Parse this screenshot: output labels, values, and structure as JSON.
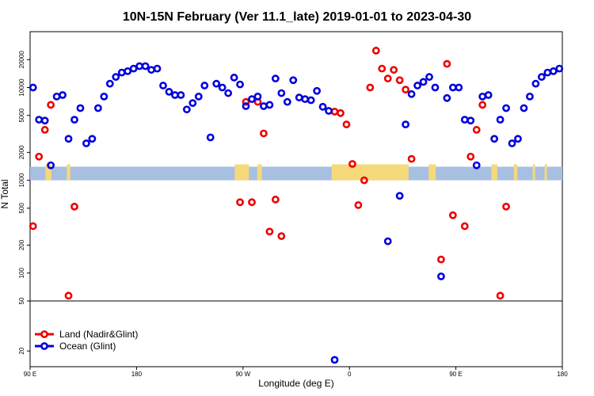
{
  "chart_data": {
    "type": "scatter",
    "title": "10N-15N February (Ver 11.1_late)   2019-01-01 to 2023-04-30",
    "xlabel": "Longitude (deg E)",
    "ylabel": "N Total",
    "x_ticks": [
      {
        "value": 90,
        "label": "90 E"
      },
      {
        "value": 180,
        "label": "180"
      },
      {
        "value": 270,
        "label": "90 W"
      },
      {
        "value": 360,
        "label": "0"
      },
      {
        "value": 450,
        "label": "90 E"
      },
      {
        "value": 540,
        "label": "180"
      }
    ],
    "xlim": [
      90,
      540
    ],
    "y_scale": "log",
    "upper_ticks": [
      {
        "value": 20000,
        "label": "20000"
      },
      {
        "value": 10000,
        "label": "10000"
      },
      {
        "value": 5000,
        "label": "5000"
      },
      {
        "value": 2000,
        "label": "2000"
      },
      {
        "value": 1000,
        "label": "1000"
      },
      {
        "value": 500,
        "label": "500"
      },
      {
        "value": 200,
        "label": "200"
      },
      {
        "value": 100,
        "label": "100"
      },
      {
        "value": 50,
        "label": "50"
      }
    ],
    "upper_ylim": [
      50,
      40000
    ],
    "lower_ticks": [
      {
        "value": 20,
        "label": "20"
      }
    ],
    "lower_ylim": [
      15,
      50
    ],
    "legend": {
      "position": "bottom-left",
      "entries": [
        {
          "label": "Land (Nadir&Glint)",
          "color": "#ee0000"
        },
        {
          "label": "Ocean (Glint)",
          "color": "#0000dd"
        }
      ]
    },
    "land_band": {
      "lower": 1000,
      "upper": 1400,
      "water_color": "#a7bfe0",
      "land_color": "#f5d97a"
    },
    "land_segments": [
      [
        103,
        108
      ],
      [
        121,
        124
      ],
      [
        263,
        275
      ],
      [
        282,
        286
      ],
      [
        345,
        410
      ],
      [
        427,
        433
      ],
      [
        480,
        485
      ],
      [
        499,
        502
      ],
      [
        515,
        517
      ],
      [
        525,
        527
      ]
    ],
    "series": [
      {
        "name": "Land (Nadir&Glint)",
        "color": "#ee0000",
        "points": [
          [
            92.5,
            320
          ],
          [
            97.5,
            1800
          ],
          [
            102.5,
            3500
          ],
          [
            107.5,
            6500
          ],
          [
            122.5,
            57
          ],
          [
            127.5,
            520
          ],
          [
            267.5,
            580
          ],
          [
            272.5,
            7000
          ],
          [
            277.5,
            580
          ],
          [
            282.5,
            7000
          ],
          [
            287.5,
            3200
          ],
          [
            292.5,
            280
          ],
          [
            297.5,
            620
          ],
          [
            302.5,
            250
          ],
          [
            347.5,
            5500
          ],
          [
            352.5,
            5300
          ],
          [
            357.5,
            4000
          ],
          [
            362.5,
            1500
          ],
          [
            367.5,
            540
          ],
          [
            372.5,
            1000
          ],
          [
            377.5,
            10000
          ],
          [
            382.5,
            25000
          ],
          [
            387.5,
            16000
          ],
          [
            392.5,
            12500
          ],
          [
            397.5,
            15500
          ],
          [
            402.5,
            12000
          ],
          [
            407.5,
            9500
          ],
          [
            412.5,
            1700
          ],
          [
            437.5,
            140
          ],
          [
            442.5,
            18000
          ],
          [
            447.5,
            420
          ],
          [
            457.5,
            320
          ],
          [
            462.5,
            1800
          ],
          [
            467.5,
            3500
          ],
          [
            472.5,
            6500
          ],
          [
            487.5,
            57
          ],
          [
            492.5,
            520
          ]
        ]
      },
      {
        "name": "Ocean (Glint)",
        "color": "#0000dd",
        "points": [
          [
            92.5,
            10000
          ],
          [
            97.5,
            4500
          ],
          [
            102.5,
            4400
          ],
          [
            107.5,
            1450
          ],
          [
            112.5,
            8000
          ],
          [
            117.5,
            8300
          ],
          [
            122.5,
            2800
          ],
          [
            127.5,
            4500
          ],
          [
            132.5,
            6000
          ],
          [
            137.5,
            2500
          ],
          [
            142.5,
            2800
          ],
          [
            147.5,
            6000
          ],
          [
            152.5,
            8000
          ],
          [
            157.5,
            11000
          ],
          [
            162.5,
            13000
          ],
          [
            167.5,
            14500
          ],
          [
            172.5,
            15000
          ],
          [
            177.5,
            16000
          ],
          [
            182.5,
            17000
          ],
          [
            187.5,
            17000
          ],
          [
            192.5,
            15500
          ],
          [
            197.5,
            16000
          ],
          [
            202.5,
            10500
          ],
          [
            207.5,
            9000
          ],
          [
            212.5,
            8300
          ],
          [
            217.5,
            8300
          ],
          [
            222.5,
            5800
          ],
          [
            227.5,
            6800
          ],
          [
            232.5,
            8000
          ],
          [
            237.5,
            10500
          ],
          [
            242.5,
            2900
          ],
          [
            247.5,
            11000
          ],
          [
            252.5,
            10000
          ],
          [
            257.5,
            8700
          ],
          [
            262.5,
            12800
          ],
          [
            267.5,
            10800
          ],
          [
            272.5,
            6300
          ],
          [
            277.5,
            7500
          ],
          [
            282.5,
            8000
          ],
          [
            287.5,
            6300
          ],
          [
            292.5,
            6500
          ],
          [
            297.5,
            12500
          ],
          [
            302.5,
            8700
          ],
          [
            307.5,
            7000
          ],
          [
            312.5,
            12000
          ],
          [
            317.5,
            7800
          ],
          [
            322.5,
            7500
          ],
          [
            327.5,
            7300
          ],
          [
            332.5,
            9200
          ],
          [
            337.5,
            6200
          ],
          [
            342.5,
            5600
          ],
          [
            347.5,
            17
          ],
          [
            392.5,
            220
          ],
          [
            402.5,
            680
          ],
          [
            407.5,
            4000
          ],
          [
            412.5,
            8500
          ],
          [
            417.5,
            10500
          ],
          [
            422.5,
            11500
          ],
          [
            427.5,
            13000
          ],
          [
            432.5,
            10000
          ],
          [
            437.5,
            92
          ],
          [
            442.5,
            7700
          ],
          [
            447.5,
            10000
          ],
          [
            452.5,
            10000
          ],
          [
            457.5,
            4500
          ],
          [
            462.5,
            4400
          ],
          [
            467.5,
            1450
          ],
          [
            472.5,
            8000
          ],
          [
            477.5,
            8300
          ],
          [
            482.5,
            2800
          ],
          [
            487.5,
            4500
          ],
          [
            492.5,
            6000
          ],
          [
            497.5,
            2500
          ],
          [
            502.5,
            2800
          ],
          [
            507.5,
            6000
          ],
          [
            512.5,
            8000
          ],
          [
            517.5,
            11000
          ],
          [
            522.5,
            13000
          ],
          [
            527.5,
            14500
          ],
          [
            532.5,
            15000
          ],
          [
            537.5,
            16000
          ]
        ]
      }
    ]
  }
}
